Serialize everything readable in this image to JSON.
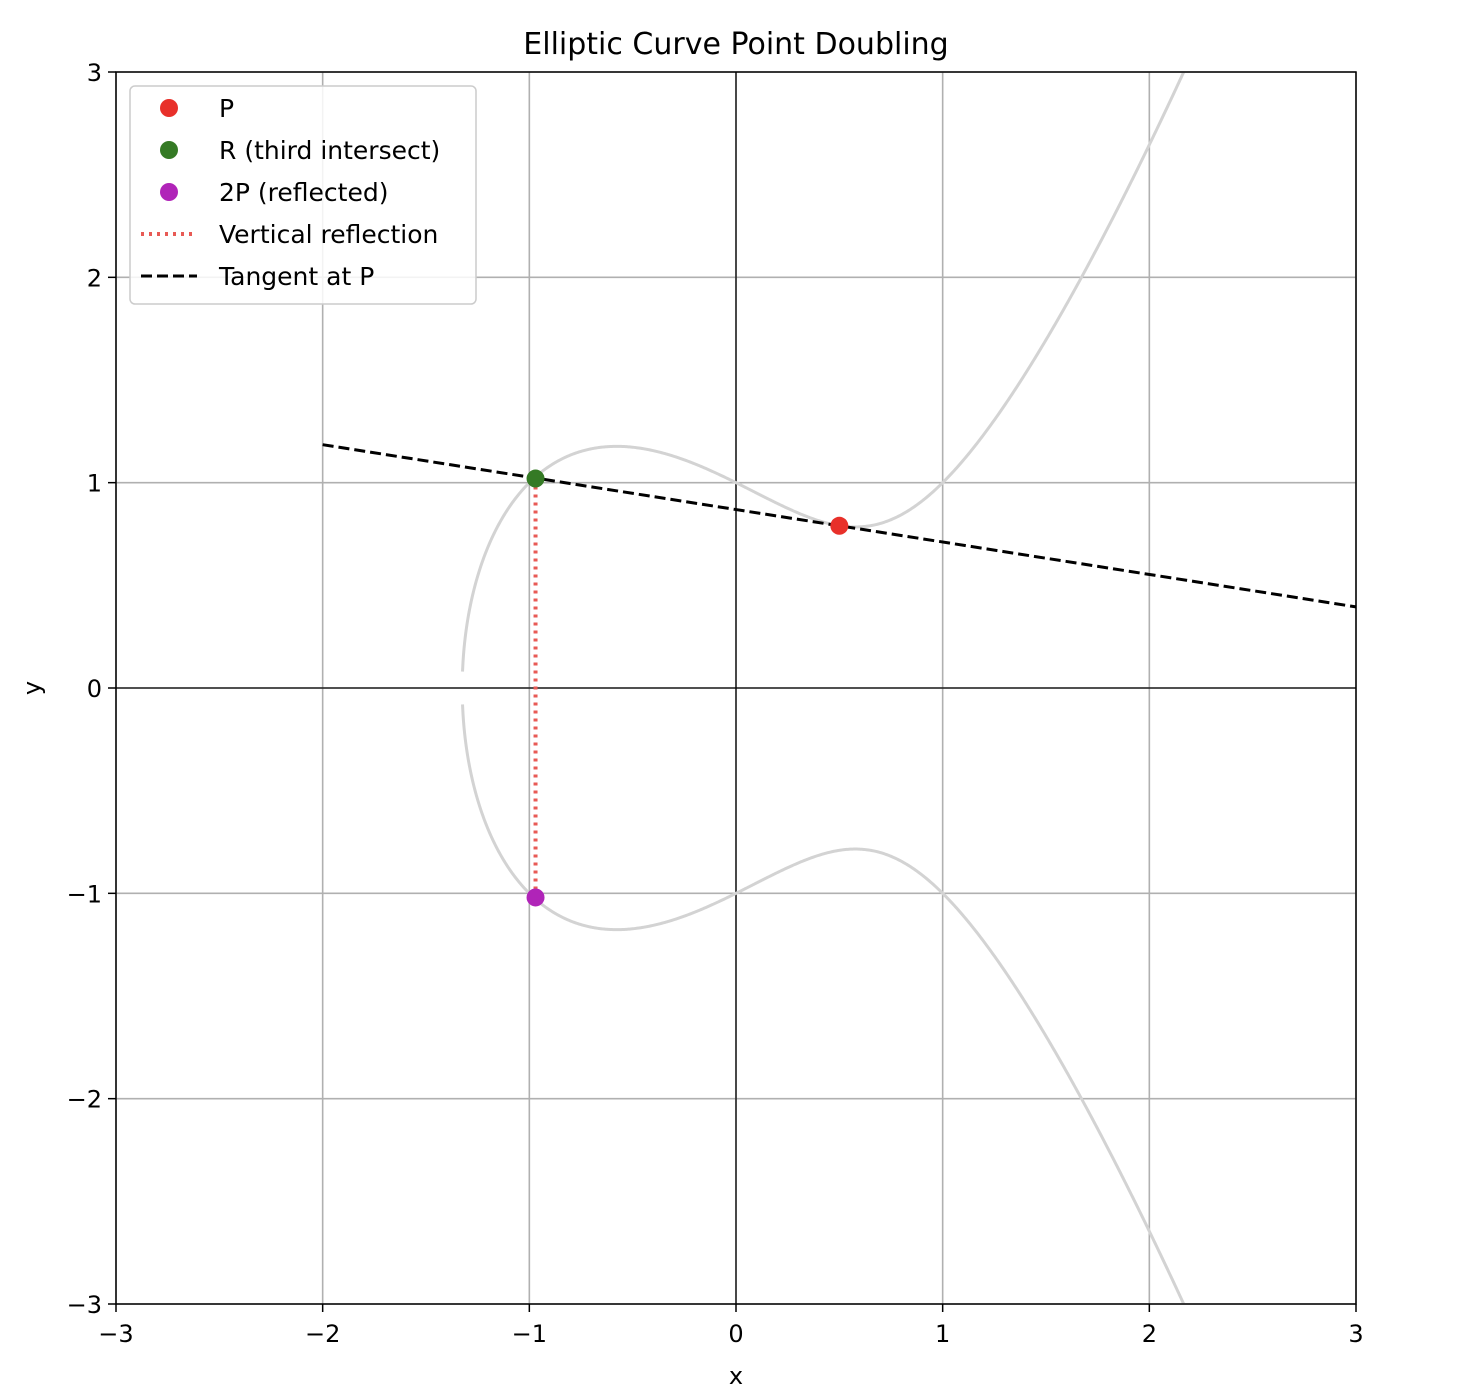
{
  "chart_data": {
    "type": "line",
    "title": "Elliptic Curve Point Doubling",
    "xlabel": "x",
    "ylabel": "y",
    "xlim": [
      -3,
      3
    ],
    "ylim": [
      -3,
      3
    ],
    "xticks": [
      -3,
      -2,
      -1,
      0,
      1,
      2,
      3
    ],
    "yticks": [
      -3,
      -2,
      -1,
      0,
      1,
      2,
      3
    ],
    "xtick_labels": [
      "−3",
      "−2",
      "−1",
      "0",
      "1",
      "2",
      "3"
    ],
    "ytick_labels": [
      "−3",
      "−2",
      "−1",
      "0",
      "1",
      "2",
      "3"
    ],
    "grid": true,
    "legend_position": "top-left",
    "curve": {
      "equation": "y^2 = x^3 - x + 1",
      "a": -1,
      "b": 1,
      "color": "#d3d3d3"
    },
    "points": [
      {
        "name": "P",
        "label": "P",
        "x": 0.5,
        "y": 0.79,
        "color": "#e8302a"
      },
      {
        "name": "R",
        "label": "R (third intersect)",
        "x": -0.97,
        "y": 1.02,
        "color": "#357a25"
      },
      {
        "name": "2P",
        "label": "2P (reflected)",
        "x": -0.97,
        "y": -1.02,
        "color": "#b024b8"
      }
    ],
    "lines": [
      {
        "name": "reflection",
        "label": "Vertical reflection",
        "style": "dotted",
        "color": "#e85a55",
        "x": [
          -0.97,
          -0.97
        ],
        "y": [
          1.02,
          -1.02
        ]
      },
      {
        "name": "tangent",
        "label": "Tangent at P",
        "style": "dashed",
        "color": "#000000",
        "x": [
          -2,
          3
        ],
        "y": [
          1.185,
          0.395
        ]
      }
    ]
  }
}
